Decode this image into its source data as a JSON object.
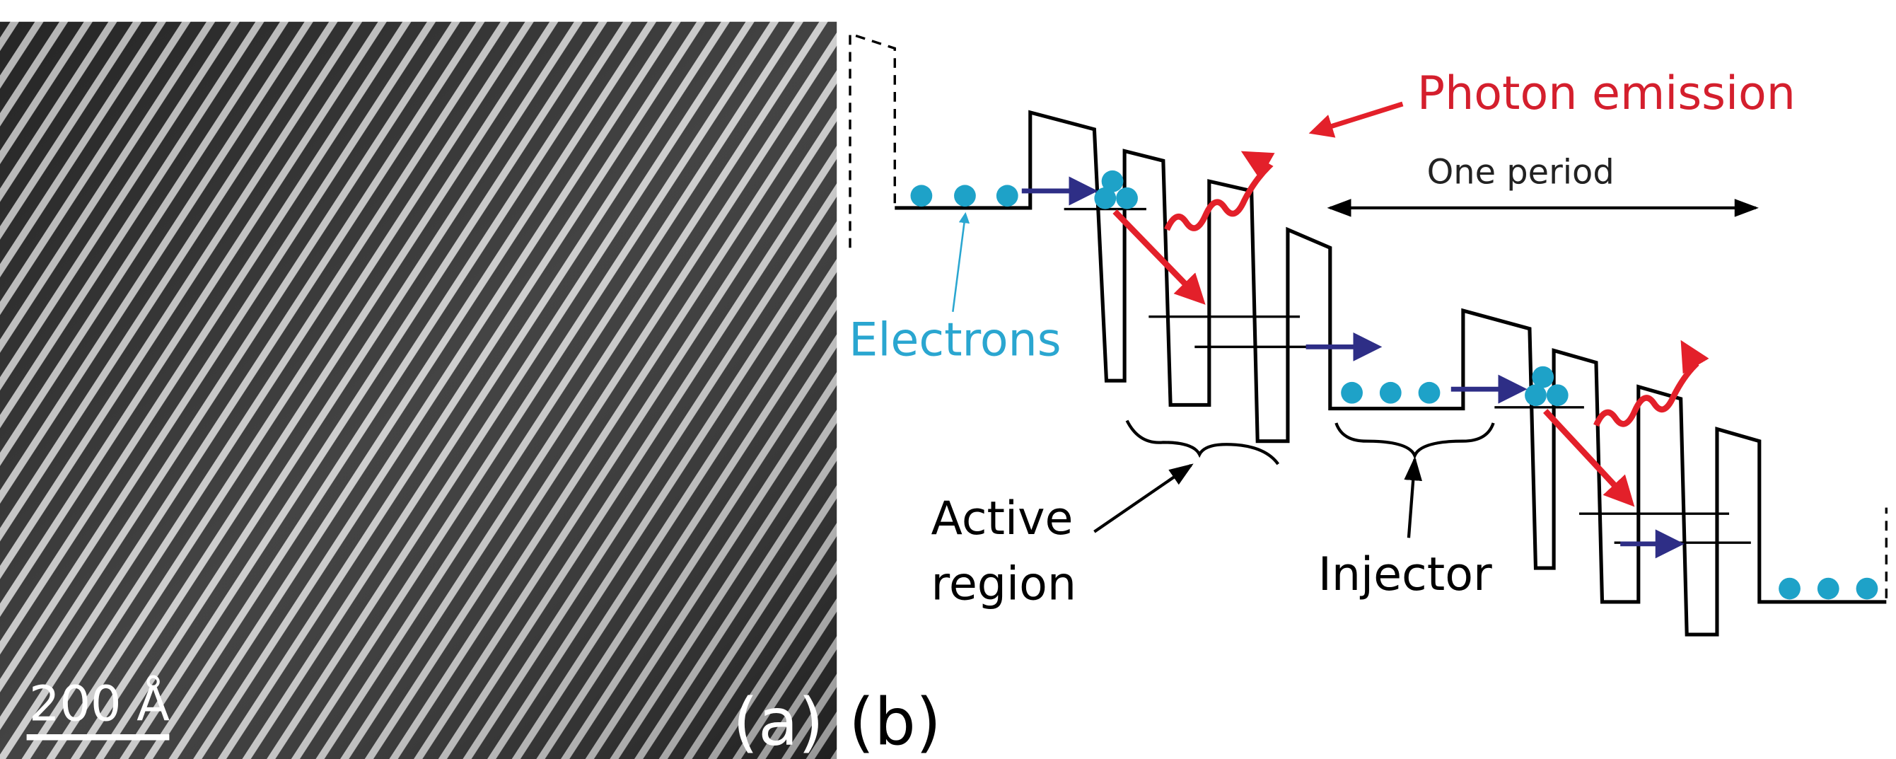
{
  "panel_a": {
    "label": "(a)",
    "scale_bar": "200 Å"
  },
  "panel_b": {
    "label": "(b)",
    "photon_emission": "Photon emission",
    "one_period": "One period",
    "electrons": "Electrons",
    "active_region": [
      "Active",
      "region"
    ],
    "injector": "Injector"
  }
}
